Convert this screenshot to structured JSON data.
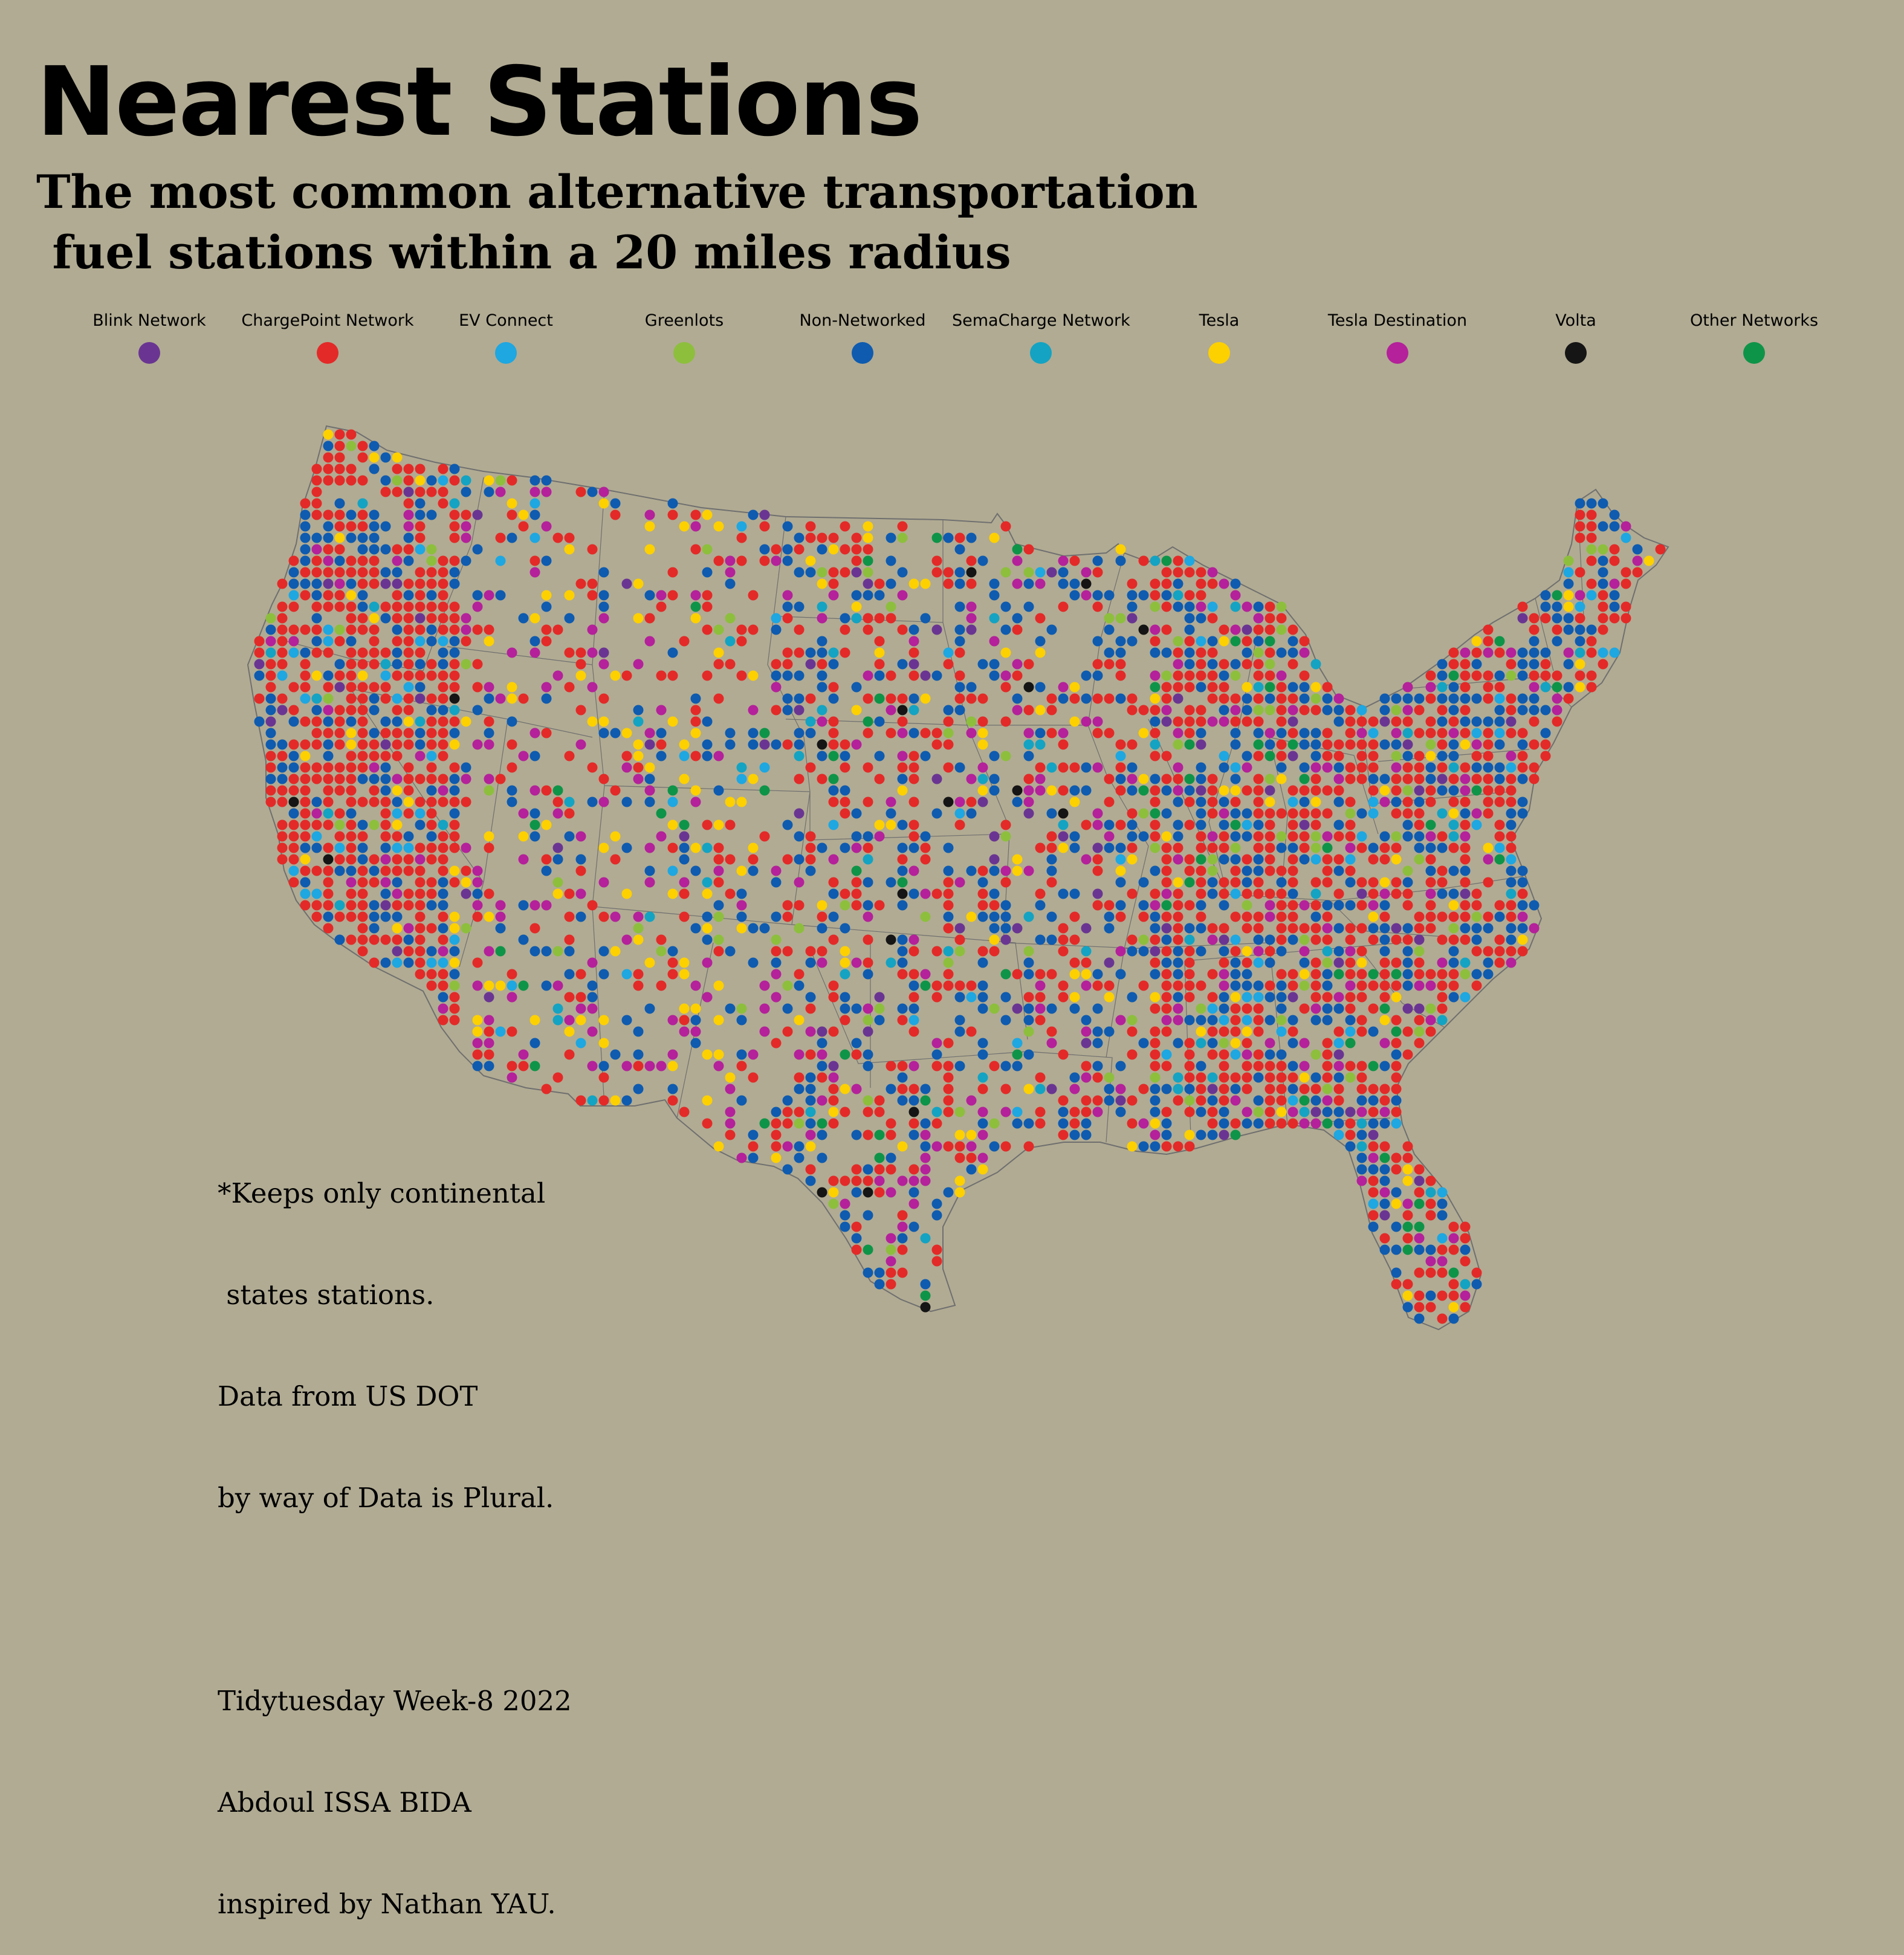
{
  "header": {
    "title": "Nearest Stations",
    "subtitle": "The most common alternative transportation\n fuel stations within a 20 miles radius"
  },
  "legend": [
    {
      "label": "Blink Network",
      "color": "#6a3592"
    },
    {
      "label": "ChargePoint Network",
      "color": "#e32a28"
    },
    {
      "label": "EV Connect",
      "color": "#1ea7e1"
    },
    {
      "label": "Greenlots",
      "color": "#8dbf3d"
    },
    {
      "label": "Non-Networked",
      "color": "#0e5bb0"
    },
    {
      "label": "SemaCharge Network",
      "color": "#14a3c2"
    },
    {
      "label": "Tesla",
      "color": "#fdd000"
    },
    {
      "label": "Tesla Destination",
      "color": "#b4219a"
    },
    {
      "label": "Volta",
      "color": "#151515"
    },
    {
      "label": "Other Networks",
      "color": "#0e9448"
    }
  ],
  "map": {
    "region": "continental United States",
    "border_color": "#6f6f6f",
    "land_fill": "#b1ab93"
  },
  "footnote": {
    "line1": "*Keeps only continental",
    "line2": " states stations.",
    "line3": "Data from US DOT",
    "line4": "by way of Data is Plural.",
    "line5": "Tidytuesday Week-8 2022",
    "line6": "Abdoul ISSA BIDA",
    "line7": "inspired by Nathan YAU."
  }
}
